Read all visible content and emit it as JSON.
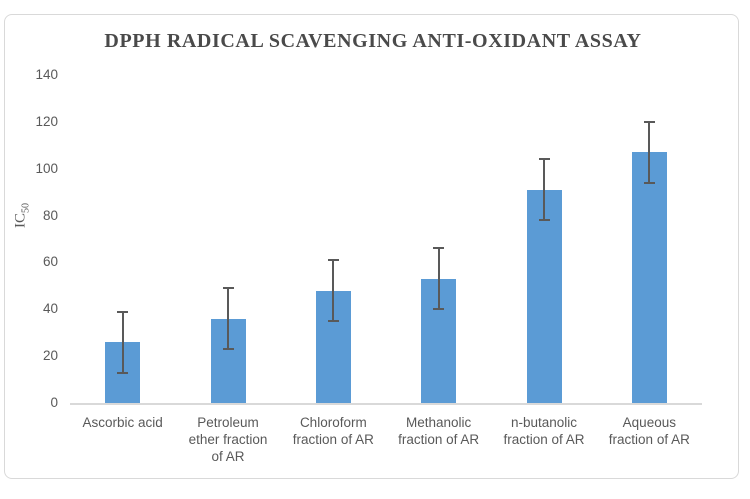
{
  "chart_data": {
    "type": "bar",
    "title": "DPPH RADICAL SCAVENGING ANTI-OXIDANT ASSAY",
    "ylabel": {
      "text": "IC",
      "sub": "50"
    },
    "categories": [
      "Ascorbic acid",
      "Petroleum ether fraction of AR",
      "Chloroform fraction of AR",
      "Methanolic fraction of AR",
      "n-butanolic fraction of AR",
      "Aqueous fraction of AR"
    ],
    "category_lines": [
      [
        "Ascorbic acid"
      ],
      [
        "Petroleum",
        "ether fraction",
        "of AR"
      ],
      [
        "Chloroform",
        "fraction of AR"
      ],
      [
        "Methanolic",
        "fraction of AR"
      ],
      [
        "n-butanolic",
        "fraction of AR"
      ],
      [
        "Aqueous",
        "fraction of AR"
      ]
    ],
    "values": [
      26,
      36,
      48,
      53,
      91,
      107
    ],
    "error_bars": [
      13,
      13,
      13,
      13,
      13,
      13
    ],
    "y_ticks": [
      0,
      20,
      40,
      60,
      80,
      100,
      120,
      140
    ],
    "ylim": [
      0,
      140
    ],
    "xlabel": "",
    "grid": false,
    "legend": false,
    "colors": {
      "bar": "#5B9BD5",
      "error": "#595959",
      "title": "#4A4A4A",
      "axis_text": "#595959",
      "axis_line": "#D9D9D9",
      "frame_border": "#D9D9D9"
    }
  }
}
